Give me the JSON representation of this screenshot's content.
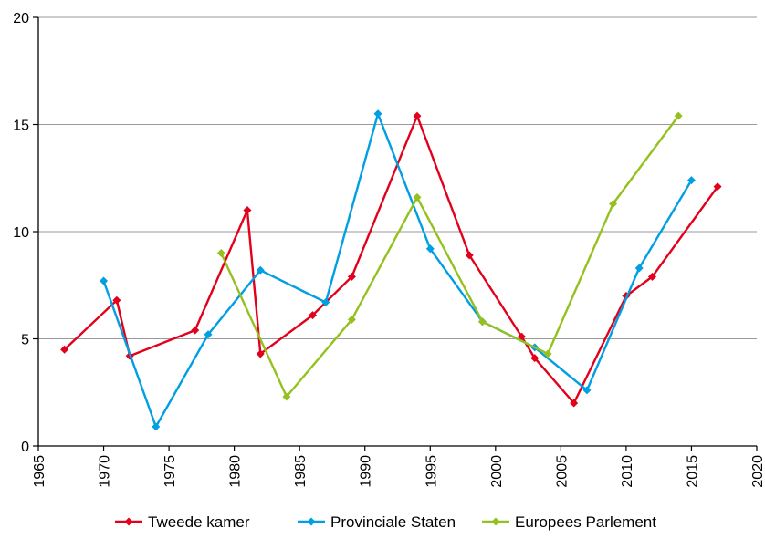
{
  "chart_data": {
    "type": "line",
    "title": "",
    "xlabel": "",
    "ylabel": "",
    "xlim": [
      1965,
      2020
    ],
    "ylim": [
      0,
      20
    ],
    "x_ticks": [
      "1965",
      "1970",
      "1975",
      "1980",
      "1985",
      "1990",
      "1995",
      "2000",
      "2005",
      "2010",
      "2015",
      "2020"
    ],
    "y_ticks": [
      "0",
      "5",
      "10",
      "15",
      "20"
    ],
    "grid": "horizontal",
    "legend_position": "bottom",
    "series": [
      {
        "name": "Tweede kamer",
        "color": "#e3001b",
        "points": [
          [
            1967,
            4.5
          ],
          [
            1971,
            6.8
          ],
          [
            1972,
            4.2
          ],
          [
            1977,
            5.4
          ],
          [
            1981,
            11.0
          ],
          [
            1982,
            4.3
          ],
          [
            1986,
            6.1
          ],
          [
            1989,
            7.9
          ],
          [
            1994,
            15.4
          ],
          [
            1998,
            8.9
          ],
          [
            2002,
            5.1
          ],
          [
            2003,
            4.1
          ],
          [
            2006,
            2.0
          ],
          [
            2010,
            7.0
          ],
          [
            2012,
            7.9
          ],
          [
            2017,
            12.1
          ]
        ]
      },
      {
        "name": "Provinciale Staten",
        "color": "#009fe3",
        "points": [
          [
            1970,
            7.7
          ],
          [
            1974,
            0.9
          ],
          [
            1978,
            5.2
          ],
          [
            1982,
            8.2
          ],
          [
            1987,
            6.7
          ],
          [
            1991,
            15.5
          ],
          [
            1995,
            9.2
          ],
          [
            1999,
            5.8
          ],
          [
            2003,
            4.6
          ],
          [
            2007,
            2.6
          ],
          [
            2011,
            8.3
          ],
          [
            2015,
            12.4
          ]
        ]
      },
      {
        "name": "Europees Parlement",
        "color": "#95c11f",
        "points": [
          [
            1979,
            9.0
          ],
          [
            1984,
            2.3
          ],
          [
            1989,
            5.9
          ],
          [
            1994,
            11.6
          ],
          [
            1999,
            5.8
          ],
          [
            2004,
            4.3
          ],
          [
            2009,
            11.3
          ],
          [
            2014,
            15.4
          ]
        ]
      }
    ]
  }
}
